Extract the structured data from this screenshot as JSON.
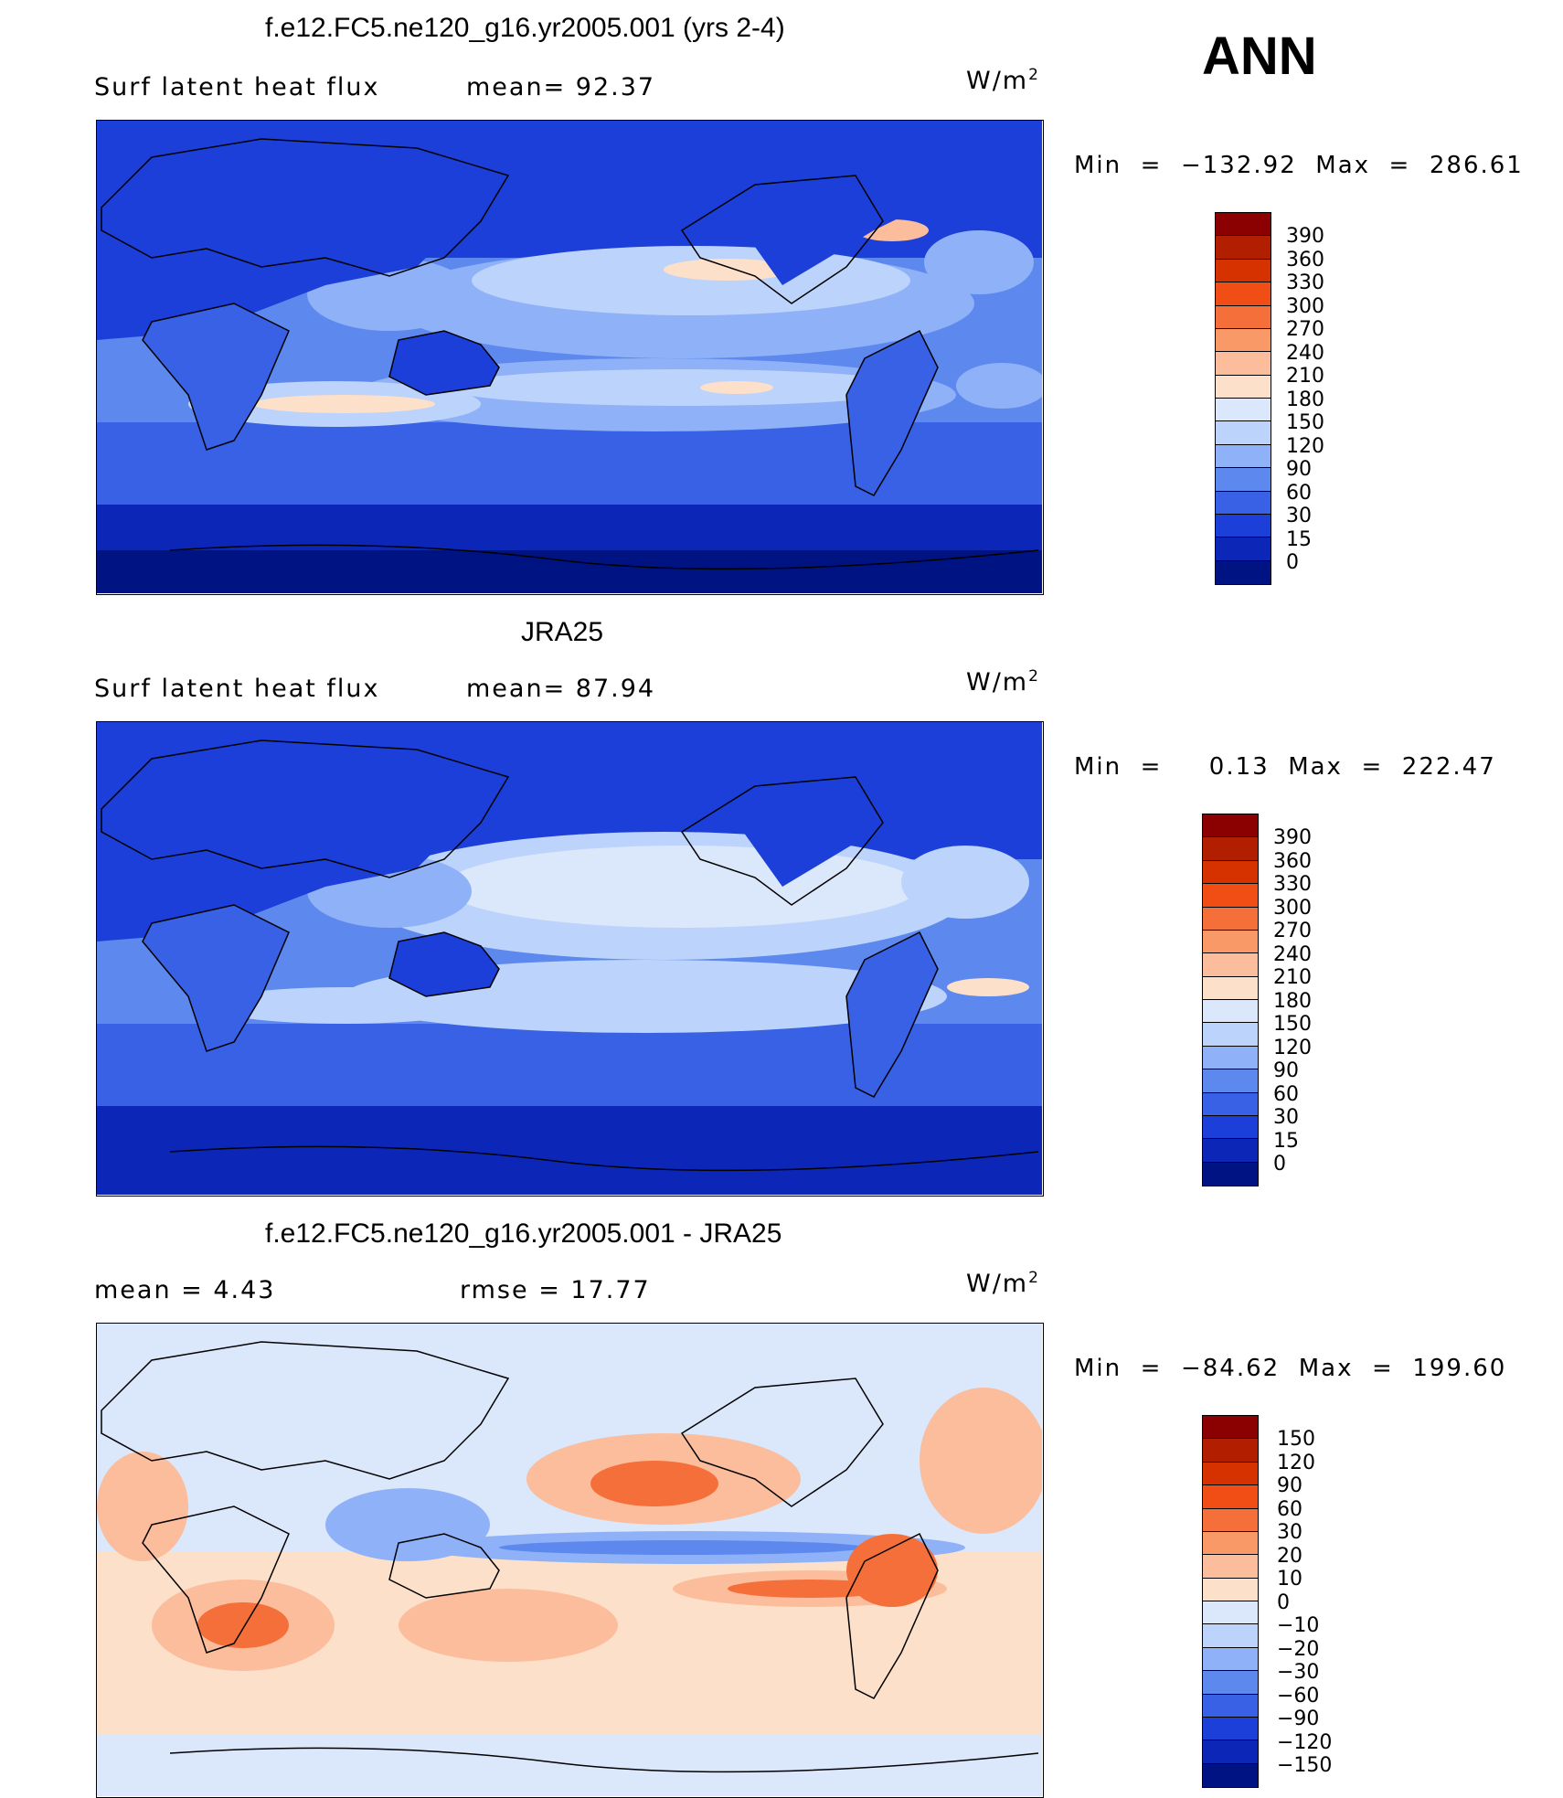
{
  "season_label": "ANN",
  "units": {
    "base": "W/m",
    "exp": "2"
  },
  "panels": [
    {
      "title": "f.e12.FC5.ne120_g16.yr2005.001 (yrs 2-4)",
      "stat_left": "Surf  latent  heat  flux",
      "stat_right": "mean=   92.37",
      "minmax": "Min  =  −132.92  Max  =  286.61",
      "scale_labels": [
        "390",
        "360",
        "330",
        "300",
        "270",
        "240",
        "210",
        "180",
        "150",
        "120",
        "90",
        "60",
        "30",
        "15",
        "0"
      ],
      "scale_colors": [
        "#8b0000",
        "#b21f00",
        "#d63200",
        "#f04e14",
        "#f56f3a",
        "#f99968",
        "#fbbd9c",
        "#fde0c9",
        "#dbe7fb",
        "#bcd3fb",
        "#8fb1f7",
        "#5d88ee",
        "#3861e5",
        "#1b3fd8",
        "#0c27b7",
        "#001383"
      ],
      "map_kind": "model"
    },
    {
      "title": "JRA25",
      "stat_left": "Surf  latent  heat  flux",
      "stat_right": "mean=   87.94",
      "minmax": "Min  =     0.13  Max  =  222.47",
      "scale_labels": [
        "390",
        "360",
        "330",
        "300",
        "270",
        "240",
        "210",
        "180",
        "150",
        "120",
        "90",
        "60",
        "30",
        "15",
        "0"
      ],
      "scale_colors": [
        "#8b0000",
        "#b21f00",
        "#d63200",
        "#f04e14",
        "#f56f3a",
        "#f99968",
        "#fbbd9c",
        "#fde0c9",
        "#dbe7fb",
        "#bcd3fb",
        "#8fb1f7",
        "#5d88ee",
        "#3861e5",
        "#1b3fd8",
        "#0c27b7",
        "#001383"
      ],
      "map_kind": "obs"
    },
    {
      "title": "f.e12.FC5.ne120_g16.yr2005.001 - JRA25",
      "stat_left": "mean  =      4.43",
      "stat_right": "rmse  =     17.77",
      "minmax": "Min  =  −84.62  Max  =  199.60",
      "scale_labels": [
        "150",
        "120",
        "90",
        "60",
        "30",
        "20",
        "10",
        "0",
        "−10",
        "−20",
        "−30",
        "−60",
        "−90",
        "−120",
        "−150"
      ],
      "scale_colors": [
        "#8b0000",
        "#b21f00",
        "#d63200",
        "#f04e14",
        "#f56f3a",
        "#f99968",
        "#fbbd9c",
        "#fde0c9",
        "#dbe7fb",
        "#bcd3fb",
        "#8fb1f7",
        "#5d88ee",
        "#3861e5",
        "#1b3fd8",
        "#0c27b7",
        "#001383"
      ],
      "map_kind": "diff"
    }
  ]
}
